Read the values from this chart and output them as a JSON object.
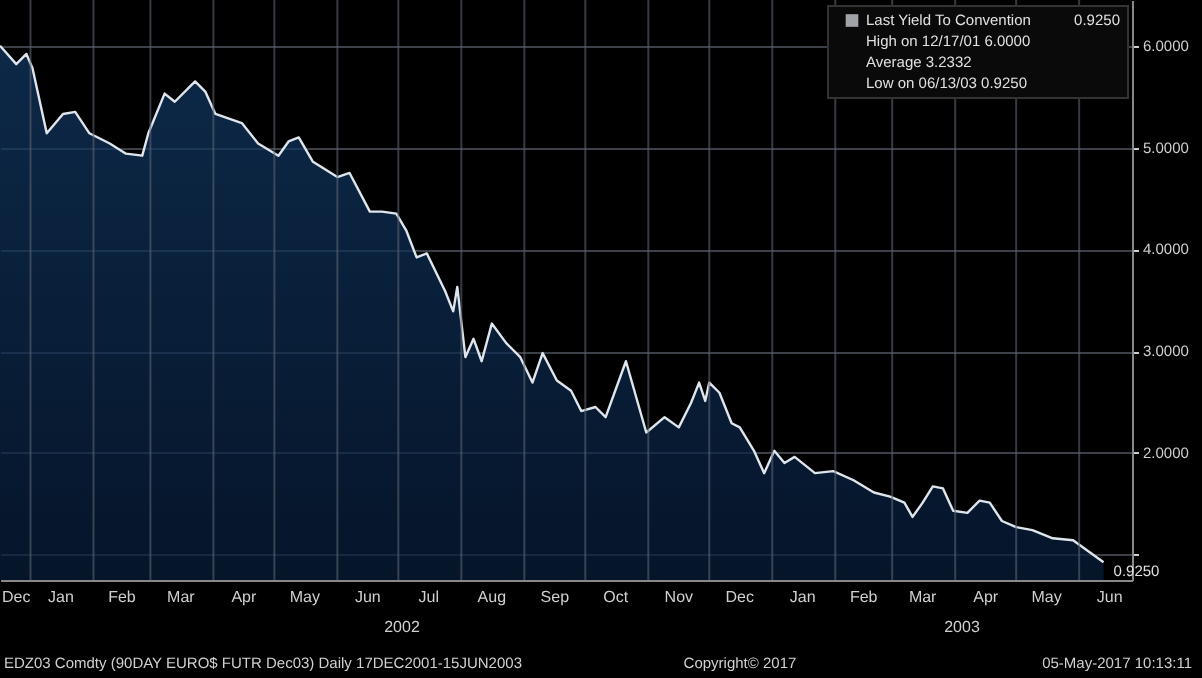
{
  "chart_data": {
    "type": "area",
    "x": [
      "2001-12-17",
      "2001-12-25",
      "2001-12-30",
      "2002-01-02",
      "2002-01-09",
      "2002-01-17",
      "2002-01-23",
      "2002-01-30",
      "2002-02-09",
      "2002-02-17",
      "2002-02-25",
      "2002-02-28",
      "2002-03-08",
      "2002-03-13",
      "2002-03-23",
      "2002-03-28",
      "2002-04-02",
      "2002-04-15",
      "2002-04-23",
      "2002-05-03",
      "2002-05-08",
      "2002-05-13",
      "2002-05-20",
      "2002-06-01",
      "2002-06-07",
      "2002-06-17",
      "2002-06-23",
      "2002-06-30",
      "2002-07-05",
      "2002-07-10",
      "2002-07-15",
      "2002-07-24",
      "2002-07-28",
      "2002-07-30",
      "2002-08-03",
      "2002-08-07",
      "2002-08-11",
      "2002-08-16",
      "2002-08-23",
      "2002-08-30",
      "2002-09-05",
      "2002-09-10",
      "2002-09-17",
      "2002-09-24",
      "2002-09-29",
      "2002-10-06",
      "2002-10-11",
      "2002-10-21",
      "2002-10-31",
      "2002-11-09",
      "2002-11-16",
      "2002-11-22",
      "2002-11-26",
      "2002-11-29",
      "2002-12-01",
      "2002-12-06",
      "2002-12-12",
      "2002-12-16",
      "2002-12-23",
      "2002-12-28",
      "2003-01-02",
      "2003-01-07",
      "2003-01-12",
      "2003-01-22",
      "2003-01-31",
      "2003-02-10",
      "2003-02-20",
      "2003-02-28",
      "2003-03-07",
      "2003-03-11",
      "2003-03-16",
      "2003-03-21",
      "2003-03-26",
      "2003-03-31",
      "2003-04-07",
      "2003-04-13",
      "2003-04-18",
      "2003-04-24",
      "2003-05-01",
      "2003-05-09",
      "2003-05-19",
      "2003-05-29",
      "2003-06-05",
      "2003-06-13"
    ],
    "series": [
      {
        "name": "Last Yield To Convention",
        "color": "#dfe5ec",
        "values": [
          6.0,
          5.82,
          5.92,
          5.78,
          5.14,
          5.33,
          5.35,
          5.14,
          5.04,
          4.94,
          4.92,
          5.14,
          5.53,
          5.45,
          5.65,
          5.55,
          5.33,
          5.24,
          5.04,
          4.92,
          5.06,
          5.1,
          4.86,
          4.71,
          4.75,
          4.37,
          4.37,
          4.35,
          4.18,
          3.92,
          3.96,
          3.59,
          3.39,
          3.63,
          2.94,
          3.12,
          2.9,
          3.27,
          3.08,
          2.94,
          2.69,
          2.98,
          2.71,
          2.61,
          2.41,
          2.45,
          2.35,
          2.9,
          2.2,
          2.35,
          2.25,
          2.49,
          2.69,
          2.51,
          2.69,
          2.59,
          2.29,
          2.25,
          2.02,
          1.8,
          2.02,
          1.9,
          1.96,
          1.8,
          1.82,
          1.73,
          1.61,
          1.57,
          1.51,
          1.37,
          1.51,
          1.67,
          1.65,
          1.43,
          1.41,
          1.53,
          1.51,
          1.33,
          1.27,
          1.24,
          1.16,
          1.14,
          1.04,
          0.925
        ],
        "value_labels": [
          null,
          null,
          null,
          null,
          null,
          null,
          null,
          null,
          null,
          null,
          null,
          null,
          null,
          null,
          null,
          null,
          null,
          null,
          null,
          null,
          null,
          null,
          null,
          null,
          null,
          null,
          null,
          null,
          null,
          null,
          null,
          null,
          null,
          null,
          null,
          null,
          null,
          null,
          null,
          null,
          null,
          null,
          null,
          null,
          null,
          null,
          null,
          null,
          null,
          null,
          null,
          null,
          null,
          null,
          null,
          null,
          null,
          null,
          null,
          null,
          null,
          null,
          null,
          null,
          null,
          null,
          null,
          null,
          null,
          null,
          null,
          null,
          null,
          null,
          null,
          null,
          null,
          null,
          null,
          null,
          null,
          null,
          null,
          "0.9250"
        ]
      }
    ],
    "xlim": [
      "2001-12-17",
      "2003-06-27"
    ],
    "xticks": [
      {
        "value": "2001-12-25",
        "label": "Dec"
      },
      {
        "value": "2002-01-01",
        "label": null
      },
      {
        "value": "2002-01-16",
        "label": "Jan"
      },
      {
        "value": "2002-02-01",
        "label": null
      },
      {
        "value": "2002-02-15",
        "label": "Feb"
      },
      {
        "value": "2002-03-01",
        "label": null
      },
      {
        "value": "2002-03-16",
        "label": "Mar"
      },
      {
        "value": "2002-04-01",
        "label": null
      },
      {
        "value": "2002-04-16",
        "label": "Apr"
      },
      {
        "value": "2002-05-01",
        "label": null
      },
      {
        "value": "2002-05-16",
        "label": "May"
      },
      {
        "value": "2002-06-01",
        "label": null
      },
      {
        "value": "2002-06-16",
        "label": "Jun"
      },
      {
        "value": "2002-07-01",
        "label": null
      },
      {
        "value": "2002-07-16",
        "label": "Jul"
      },
      {
        "value": "2002-08-01",
        "label": null
      },
      {
        "value": "2002-08-16",
        "label": "Aug"
      },
      {
        "value": "2002-09-01",
        "label": null
      },
      {
        "value": "2002-09-16",
        "label": "Sep"
      },
      {
        "value": "2002-10-01",
        "label": null
      },
      {
        "value": "2002-10-16",
        "label": "Oct"
      },
      {
        "value": "2002-11-01",
        "label": null
      },
      {
        "value": "2002-11-16",
        "label": "Nov"
      },
      {
        "value": "2002-12-01",
        "label": null
      },
      {
        "value": "2002-12-16",
        "label": "Dec"
      },
      {
        "value": "2003-01-01",
        "label": null
      },
      {
        "value": "2003-01-16",
        "label": "Jan"
      },
      {
        "value": "2003-02-01",
        "label": null
      },
      {
        "value": "2003-02-15",
        "label": "Feb"
      },
      {
        "value": "2003-03-01",
        "label": null
      },
      {
        "value": "2003-03-16",
        "label": "Mar"
      },
      {
        "value": "2003-04-01",
        "label": null
      },
      {
        "value": "2003-04-16",
        "label": "Apr"
      },
      {
        "value": "2003-05-01",
        "label": null
      },
      {
        "value": "2003-05-16",
        "label": "May"
      },
      {
        "value": "2003-06-01",
        "label": null
      },
      {
        "value": "2003-06-16",
        "label": "Jun"
      }
    ],
    "ylim": [
      0.75,
      6.45
    ],
    "yticks": [
      {
        "value": 1,
        "label": null
      },
      {
        "value": 2,
        "label": "2.0000"
      },
      {
        "value": 3,
        "label": "3.0000"
      },
      {
        "value": 4,
        "label": "4.0000"
      },
      {
        "value": 5,
        "label": "5.0000"
      },
      {
        "value": 6,
        "label": "6.0000"
      }
    ],
    "grid": true,
    "legend": "top right",
    "annotations": [
      "High on 12/17/01 6.0000",
      "Average 3.2332",
      "Low on 06/13/03 0.9250",
      "2002",
      "2003",
      "EDZ03 Comdty (90DAY EURO$ FUTR Dec03) Daily 17DEC2001-15JUN2003",
      "Copyright© 2017",
      "05-May-2017 10:13:11"
    ]
  }
}
